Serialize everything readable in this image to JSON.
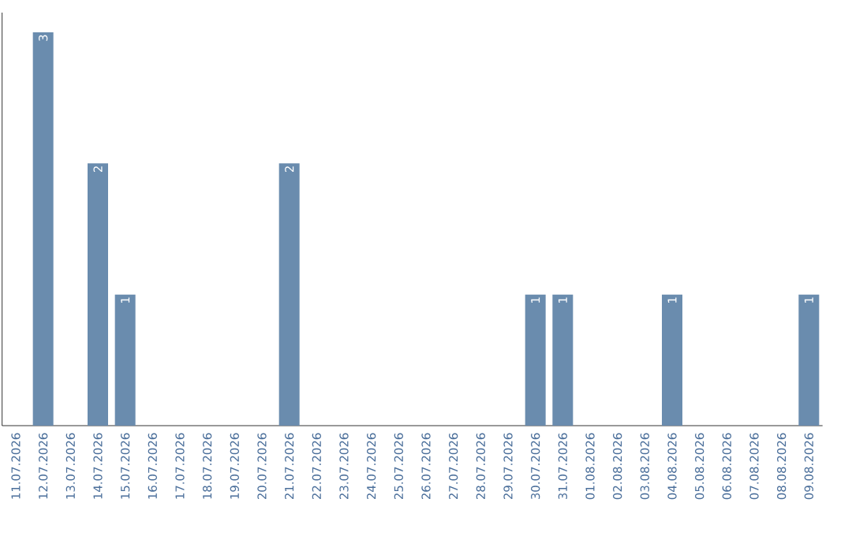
{
  "chart_data": {
    "type": "bar",
    "categories": [
      "11.07.2026",
      "12.07.2026",
      "13.07.2026",
      "14.07.2026",
      "15.07.2026",
      "16.07.2026",
      "17.07.2026",
      "18.07.2026",
      "19.07.2026",
      "20.07.2026",
      "21.07.2026",
      "22.07.2026",
      "23.07.2026",
      "24.07.2026",
      "25.07.2026",
      "26.07.2026",
      "27.07.2026",
      "28.07.2026",
      "29.07.2026",
      "30.07.2026",
      "31.07.2026",
      "01.08.2026",
      "02.08.2026",
      "03.08.2026",
      "04.08.2026",
      "05.08.2026",
      "06.08.2026",
      "07.08.2026",
      "08.08.2026",
      "09.08.2026"
    ],
    "values": [
      0,
      3,
      0,
      2,
      1,
      0,
      0,
      0,
      0,
      0,
      2,
      0,
      0,
      0,
      0,
      0,
      0,
      0,
      0,
      1,
      1,
      0,
      0,
      0,
      1,
      0,
      0,
      0,
      0,
      1
    ],
    "value_labels": [
      null,
      "3",
      null,
      "2",
      "1",
      null,
      null,
      null,
      null,
      null,
      "2",
      null,
      null,
      null,
      null,
      null,
      null,
      null,
      null,
      "1",
      "1",
      null,
      null,
      null,
      "1",
      null,
      null,
      null,
      null,
      "1"
    ],
    "color": "#6a8cae",
    "tick_labels": "x"
  }
}
